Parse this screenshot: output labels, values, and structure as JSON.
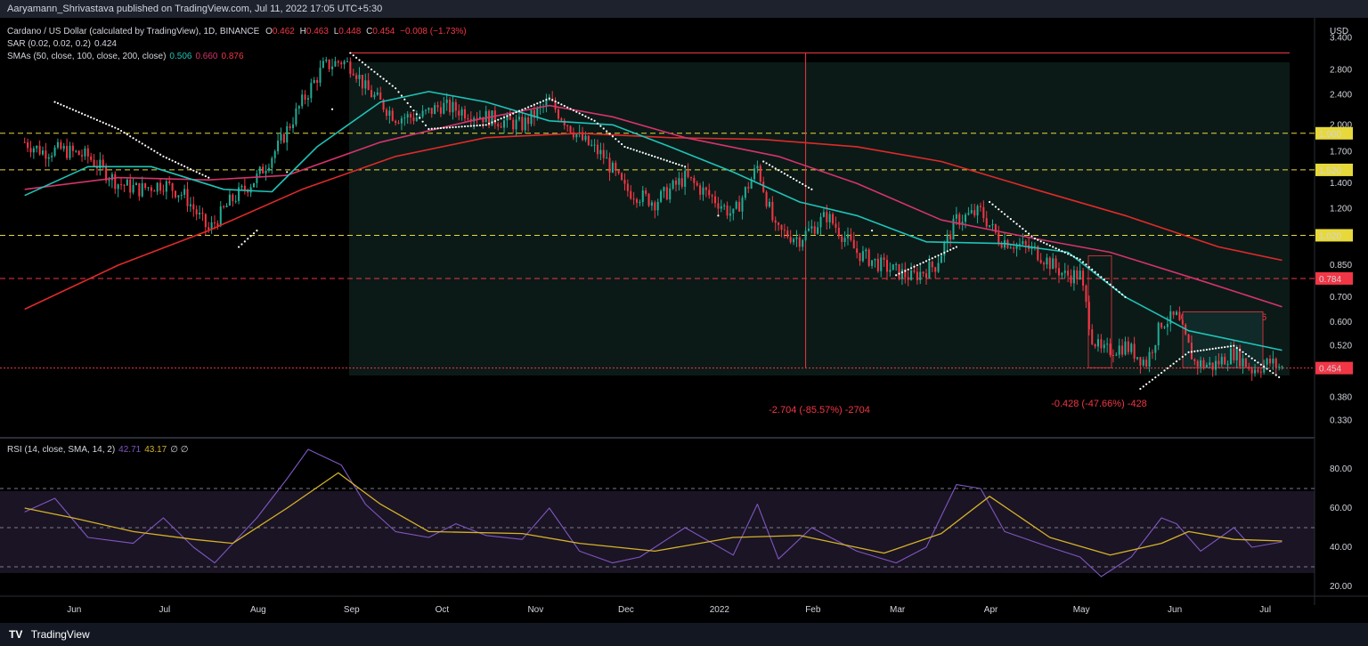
{
  "header": {
    "publisher": "Aaryamann_Shrivastava published on TradingView.com, Jul 11, 2022 17:05 UTC+5:30"
  },
  "legend": {
    "symbol": "Cardano / US Dollar (calculated by TradingView), 1D, BINANCE",
    "o_label": "O",
    "o": "0.462",
    "h_label": "H",
    "h": "0.463",
    "l_label": "L",
    "l": "0.448",
    "c_label": "C",
    "c": "0.454",
    "change": "−0.008 (−1.73%)",
    "sar": "SAR (0.02, 0.02, 0.2)",
    "sar_val": "0.424",
    "sma": "SMAs (50, close, 100, close, 200, close)",
    "sma50": "0.506",
    "sma100": "0.660",
    "sma200": "0.876",
    "rsi": "RSI (14, close, SMA, 14, 2)",
    "rsi_val": "42.71",
    "rsi_sma": "43.17",
    "rsi_extra": "∅ ∅"
  },
  "footer": {
    "brand": "TradingView",
    "logo": "TV"
  },
  "colors": {
    "up": "#26a69a",
    "up_candle": "#22ab94",
    "down": "#f23645",
    "sma50": "#1fc3b8",
    "sma100": "#d6336c",
    "sma200": "#e02a2a",
    "sar": "#ffffff",
    "rsi": "#7e57c2",
    "rsi_sma": "#d4b22a",
    "yellow": "#e8d93b",
    "red": "#f23645"
  },
  "chart_data": [
    {
      "type": "candlestick",
      "title": "Cardano / US Dollar (calculated by TradingView), 1D, BINANCE",
      "y_unit": "USD",
      "y_scale": "log",
      "ylim": [
        0.3,
        3.6
      ],
      "x_ticks": [
        "Jun",
        "Jul",
        "Aug",
        "Sep",
        "Oct",
        "Nov",
        "Dec",
        "2022",
        "Feb",
        "Mar",
        "Apr",
        "May",
        "Jun",
        "Jul"
      ],
      "y_ticks": [
        "3.400",
        "2.800",
        "2.400",
        "2.000",
        "1.700",
        "1.400",
        "1.200",
        "0.850",
        "0.700",
        "0.600",
        "0.520",
        "0.380",
        "0.330"
      ],
      "x_dates": [
        "2021-05-20",
        "2021-06-01",
        "2021-07-01",
        "2021-08-01",
        "2021-09-01",
        "2021-10-01",
        "2021-11-01",
        "2021-12-01",
        "2022-01-01",
        "2022-02-01",
        "2022-03-01",
        "2022-04-01",
        "2022-05-01",
        "2022-06-01",
        "2022-07-01",
        "2022-07-11"
      ],
      "close_series": [
        [
          "2021-05-20",
          1.8
        ],
        [
          "2021-05-26",
          1.7
        ],
        [
          "2021-06-01",
          1.72
        ],
        [
          "2021-06-10",
          1.65
        ],
        [
          "2021-06-20",
          1.4
        ],
        [
          "2021-06-27",
          1.35
        ],
        [
          "2021-07-05",
          1.4
        ],
        [
          "2021-07-12",
          1.3
        ],
        [
          "2021-07-20",
          1.05
        ],
        [
          "2021-07-27",
          1.25
        ],
        [
          "2021-08-05",
          1.45
        ],
        [
          "2021-08-12",
          1.75
        ],
        [
          "2021-08-20",
          2.3
        ],
        [
          "2021-08-27",
          2.85
        ],
        [
          "2021-09-02",
          2.95
        ],
        [
          "2021-09-06",
          2.85
        ],
        [
          "2021-09-10",
          2.5
        ],
        [
          "2021-09-20",
          2.1
        ],
        [
          "2021-09-28",
          2.1
        ],
        [
          "2021-10-05",
          2.25
        ],
        [
          "2021-10-15",
          2.15
        ],
        [
          "2021-10-25",
          2.05
        ],
        [
          "2021-11-01",
          2.0
        ],
        [
          "2021-11-10",
          2.3
        ],
        [
          "2021-11-20",
          1.85
        ],
        [
          "2021-11-28",
          1.65
        ],
        [
          "2021-12-05",
          1.35
        ],
        [
          "2021-12-15",
          1.25
        ],
        [
          "2021-12-25",
          1.45
        ],
        [
          "2022-01-05",
          1.25
        ],
        [
          "2022-01-10",
          1.15
        ],
        [
          "2022-01-18",
          1.55
        ],
        [
          "2022-01-24",
          1.05
        ],
        [
          "2022-02-01",
          1.0
        ],
        [
          "2022-02-10",
          1.15
        ],
        [
          "2022-02-20",
          0.92
        ],
        [
          "2022-02-28",
          0.85
        ],
        [
          "2022-03-10",
          0.79
        ],
        [
          "2022-03-18",
          0.85
        ],
        [
          "2022-03-25",
          1.12
        ],
        [
          "2022-04-02",
          1.18
        ],
        [
          "2022-04-08",
          1.0
        ],
        [
          "2022-04-20",
          0.93
        ],
        [
          "2022-04-30",
          0.8
        ],
        [
          "2022-05-05",
          0.8
        ],
        [
          "2022-05-09",
          0.55
        ],
        [
          "2022-05-12",
          0.5
        ],
        [
          "2022-05-20",
          0.52
        ],
        [
          "2022-05-27",
          0.47
        ],
        [
          "2022-06-01",
          0.6
        ],
        [
          "2022-06-06",
          0.62
        ],
        [
          "2022-06-12",
          0.47
        ],
        [
          "2022-06-18",
          0.46
        ],
        [
          "2022-06-25",
          0.5
        ],
        [
          "2022-07-01",
          0.45
        ],
        [
          "2022-07-07",
          0.47
        ],
        [
          "2022-07-11",
          0.454
        ]
      ],
      "sma50": [
        [
          "2021-05-20",
          1.3
        ],
        [
          "2021-06-10",
          1.55
        ],
        [
          "2021-07-01",
          1.55
        ],
        [
          "2021-07-25",
          1.35
        ],
        [
          "2021-08-10",
          1.33
        ],
        [
          "2021-08-25",
          1.75
        ],
        [
          "2021-09-15",
          2.3
        ],
        [
          "2021-10-01",
          2.45
        ],
        [
          "2021-10-20",
          2.3
        ],
        [
          "2021-11-10",
          2.05
        ],
        [
          "2021-12-01",
          2.0
        ],
        [
          "2021-12-20",
          1.75
        ],
        [
          "2022-01-10",
          1.5
        ],
        [
          "2022-02-01",
          1.25
        ],
        [
          "2022-02-20",
          1.15
        ],
        [
          "2022-03-15",
          0.98
        ],
        [
          "2022-04-10",
          0.97
        ],
        [
          "2022-05-01",
          0.92
        ],
        [
          "2022-05-20",
          0.7
        ],
        [
          "2022-06-10",
          0.57
        ],
        [
          "2022-07-11",
          0.506
        ]
      ],
      "sma100": [
        [
          "2021-05-20",
          1.35
        ],
        [
          "2021-06-20",
          1.45
        ],
        [
          "2021-07-20",
          1.43
        ],
        [
          "2021-08-15",
          1.47
        ],
        [
          "2021-09-15",
          1.8
        ],
        [
          "2021-10-15",
          2.05
        ],
        [
          "2021-11-10",
          2.25
        ],
        [
          "2021-12-01",
          2.1
        ],
        [
          "2021-12-25",
          1.85
        ],
        [
          "2022-01-25",
          1.65
        ],
        [
          "2022-02-20",
          1.4
        ],
        [
          "2022-03-20",
          1.12
        ],
        [
          "2022-04-20",
          1.0
        ],
        [
          "2022-05-15",
          0.92
        ],
        [
          "2022-06-15",
          0.77
        ],
        [
          "2022-07-11",
          0.66
        ]
      ],
      "sma200": [
        [
          "2021-05-20",
          0.65
        ],
        [
          "2021-06-20",
          0.85
        ],
        [
          "2021-07-20",
          1.05
        ],
        [
          "2021-08-20",
          1.35
        ],
        [
          "2021-09-20",
          1.65
        ],
        [
          "2021-10-20",
          1.85
        ],
        [
          "2021-11-20",
          1.9
        ],
        [
          "2021-12-20",
          1.85
        ],
        [
          "2022-01-20",
          1.83
        ],
        [
          "2022-02-20",
          1.75
        ],
        [
          "2022-03-20",
          1.6
        ],
        [
          "2022-04-20",
          1.35
        ],
        [
          "2022-05-20",
          1.15
        ],
        [
          "2022-06-20",
          0.95
        ],
        [
          "2022-07-11",
          0.876
        ]
      ],
      "sar_dots": [
        [
          "2021-05-30",
          2.3
        ],
        [
          "2021-06-20",
          1.95
        ],
        [
          "2021-07-05",
          1.65
        ],
        [
          "2021-07-20",
          1.45
        ],
        [
          "2021-07-30",
          0.95
        ],
        [
          "2021-08-05",
          1.05
        ],
        [
          "2021-08-15",
          1.5
        ],
        [
          "2021-08-30",
          2.2
        ],
        [
          "2021-09-05",
          3.1
        ],
        [
          "2021-09-20",
          2.5
        ],
        [
          "2021-10-01",
          1.95
        ],
        [
          "2021-10-20",
          2.0
        ],
        [
          "2021-11-10",
          2.35
        ],
        [
          "2021-11-25",
          2.05
        ],
        [
          "2021-12-05",
          1.75
        ],
        [
          "2021-12-25",
          1.55
        ],
        [
          "2022-01-05",
          1.15
        ],
        [
          "2022-01-20",
          1.6
        ],
        [
          "2022-02-05",
          1.35
        ],
        [
          "2022-02-25",
          1.05
        ],
        [
          "2022-03-05",
          0.8
        ],
        [
          "2022-03-25",
          0.95
        ],
        [
          "2022-04-05",
          1.25
        ],
        [
          "2022-04-20",
          1.0
        ],
        [
          "2022-05-05",
          0.88
        ],
        [
          "2022-05-20",
          0.7
        ],
        [
          "2022-05-25",
          0.4
        ],
        [
          "2022-06-10",
          0.5
        ],
        [
          "2022-06-25",
          0.52
        ],
        [
          "2022-07-11",
          0.424
        ]
      ],
      "horizontal_levels": [
        {
          "label": "1.900",
          "value": 1.9,
          "color": "yellow"
        },
        {
          "label": "1.520",
          "value": 1.52,
          "color": "yellow"
        },
        {
          "label": "1.020",
          "value": 1.02,
          "color": "yellow"
        },
        {
          "label": "0.784",
          "value": 0.784,
          "color": "red"
        },
        {
          "label": "0.454",
          "value": 0.454,
          "color": "red"
        }
      ],
      "annotations": [
        {
          "text": "-2.704 (-85.57%) -2704"
        },
        {
          "text": "-0.428 (-47.66%) -428"
        },
        {
          "text": "0.196 (44.14%) 196"
        }
      ]
    },
    {
      "type": "line",
      "title": "RSI (14, close, SMA, 14, 2)",
      "ylim": [
        15,
        95
      ],
      "y_ticks": [
        "80.00",
        "60.00",
        "40.00",
        "20.00"
      ],
      "bands": [
        70,
        50,
        30
      ],
      "series": [
        {
          "name": "RSI",
          "values": [
            [
              "2021-05-20",
              58
            ],
            [
              "2021-05-30",
              65
            ],
            [
              "2021-06-10",
              45
            ],
            [
              "2021-06-25",
              42
            ],
            [
              "2021-07-05",
              55
            ],
            [
              "2021-07-15",
              40
            ],
            [
              "2021-07-22",
              32
            ],
            [
              "2021-08-05",
              55
            ],
            [
              "2021-08-15",
              75
            ],
            [
              "2021-08-22",
              90
            ],
            [
              "2021-09-02",
              82
            ],
            [
              "2021-09-10",
              62
            ],
            [
              "2021-09-20",
              48
            ],
            [
              "2021-10-01",
              45
            ],
            [
              "2021-10-10",
              52
            ],
            [
              "2021-10-20",
              46
            ],
            [
              "2021-11-01",
              44
            ],
            [
              "2021-11-10",
              60
            ],
            [
              "2021-11-20",
              38
            ],
            [
              "2021-12-01",
              32
            ],
            [
              "2021-12-10",
              35
            ],
            [
              "2021-12-25",
              50
            ],
            [
              "2022-01-10",
              36
            ],
            [
              "2022-01-18",
              62
            ],
            [
              "2022-01-25",
              34
            ],
            [
              "2022-02-05",
              50
            ],
            [
              "2022-02-20",
              38
            ],
            [
              "2022-03-05",
              32
            ],
            [
              "2022-03-15",
              40
            ],
            [
              "2022-03-25",
              72
            ],
            [
              "2022-04-02",
              70
            ],
            [
              "2022-04-10",
              48
            ],
            [
              "2022-04-25",
              40
            ],
            [
              "2022-05-05",
              35
            ],
            [
              "2022-05-12",
              25
            ],
            [
              "2022-05-22",
              35
            ],
            [
              "2022-06-01",
              55
            ],
            [
              "2022-06-06",
              52
            ],
            [
              "2022-06-14",
              38
            ],
            [
              "2022-06-25",
              50
            ],
            [
              "2022-07-01",
              40
            ],
            [
              "2022-07-11",
              42.71
            ]
          ]
        },
        {
          "name": "SMA",
          "values": [
            [
              "2021-05-20",
              60
            ],
            [
              "2021-06-05",
              55
            ],
            [
              "2021-06-25",
              48
            ],
            [
              "2021-07-15",
              44
            ],
            [
              "2021-07-28",
              42
            ],
            [
              "2021-08-15",
              60
            ],
            [
              "2021-09-01",
              78
            ],
            [
              "2021-09-15",
              62
            ],
            [
              "2021-10-01",
              48
            ],
            [
              "2021-11-01",
              47
            ],
            [
              "2021-11-20",
              42
            ],
            [
              "2021-12-15",
              38
            ],
            [
              "2022-01-10",
              45
            ],
            [
              "2022-02-01",
              46
            ],
            [
              "2022-03-01",
              37
            ],
            [
              "2022-03-20",
              47
            ],
            [
              "2022-04-05",
              66
            ],
            [
              "2022-04-25",
              45
            ],
            [
              "2022-05-15",
              36
            ],
            [
              "2022-06-01",
              42
            ],
            [
              "2022-06-10",
              48
            ],
            [
              "2022-06-25",
              44
            ],
            [
              "2022-07-11",
              43.17
            ]
          ]
        }
      ]
    }
  ]
}
